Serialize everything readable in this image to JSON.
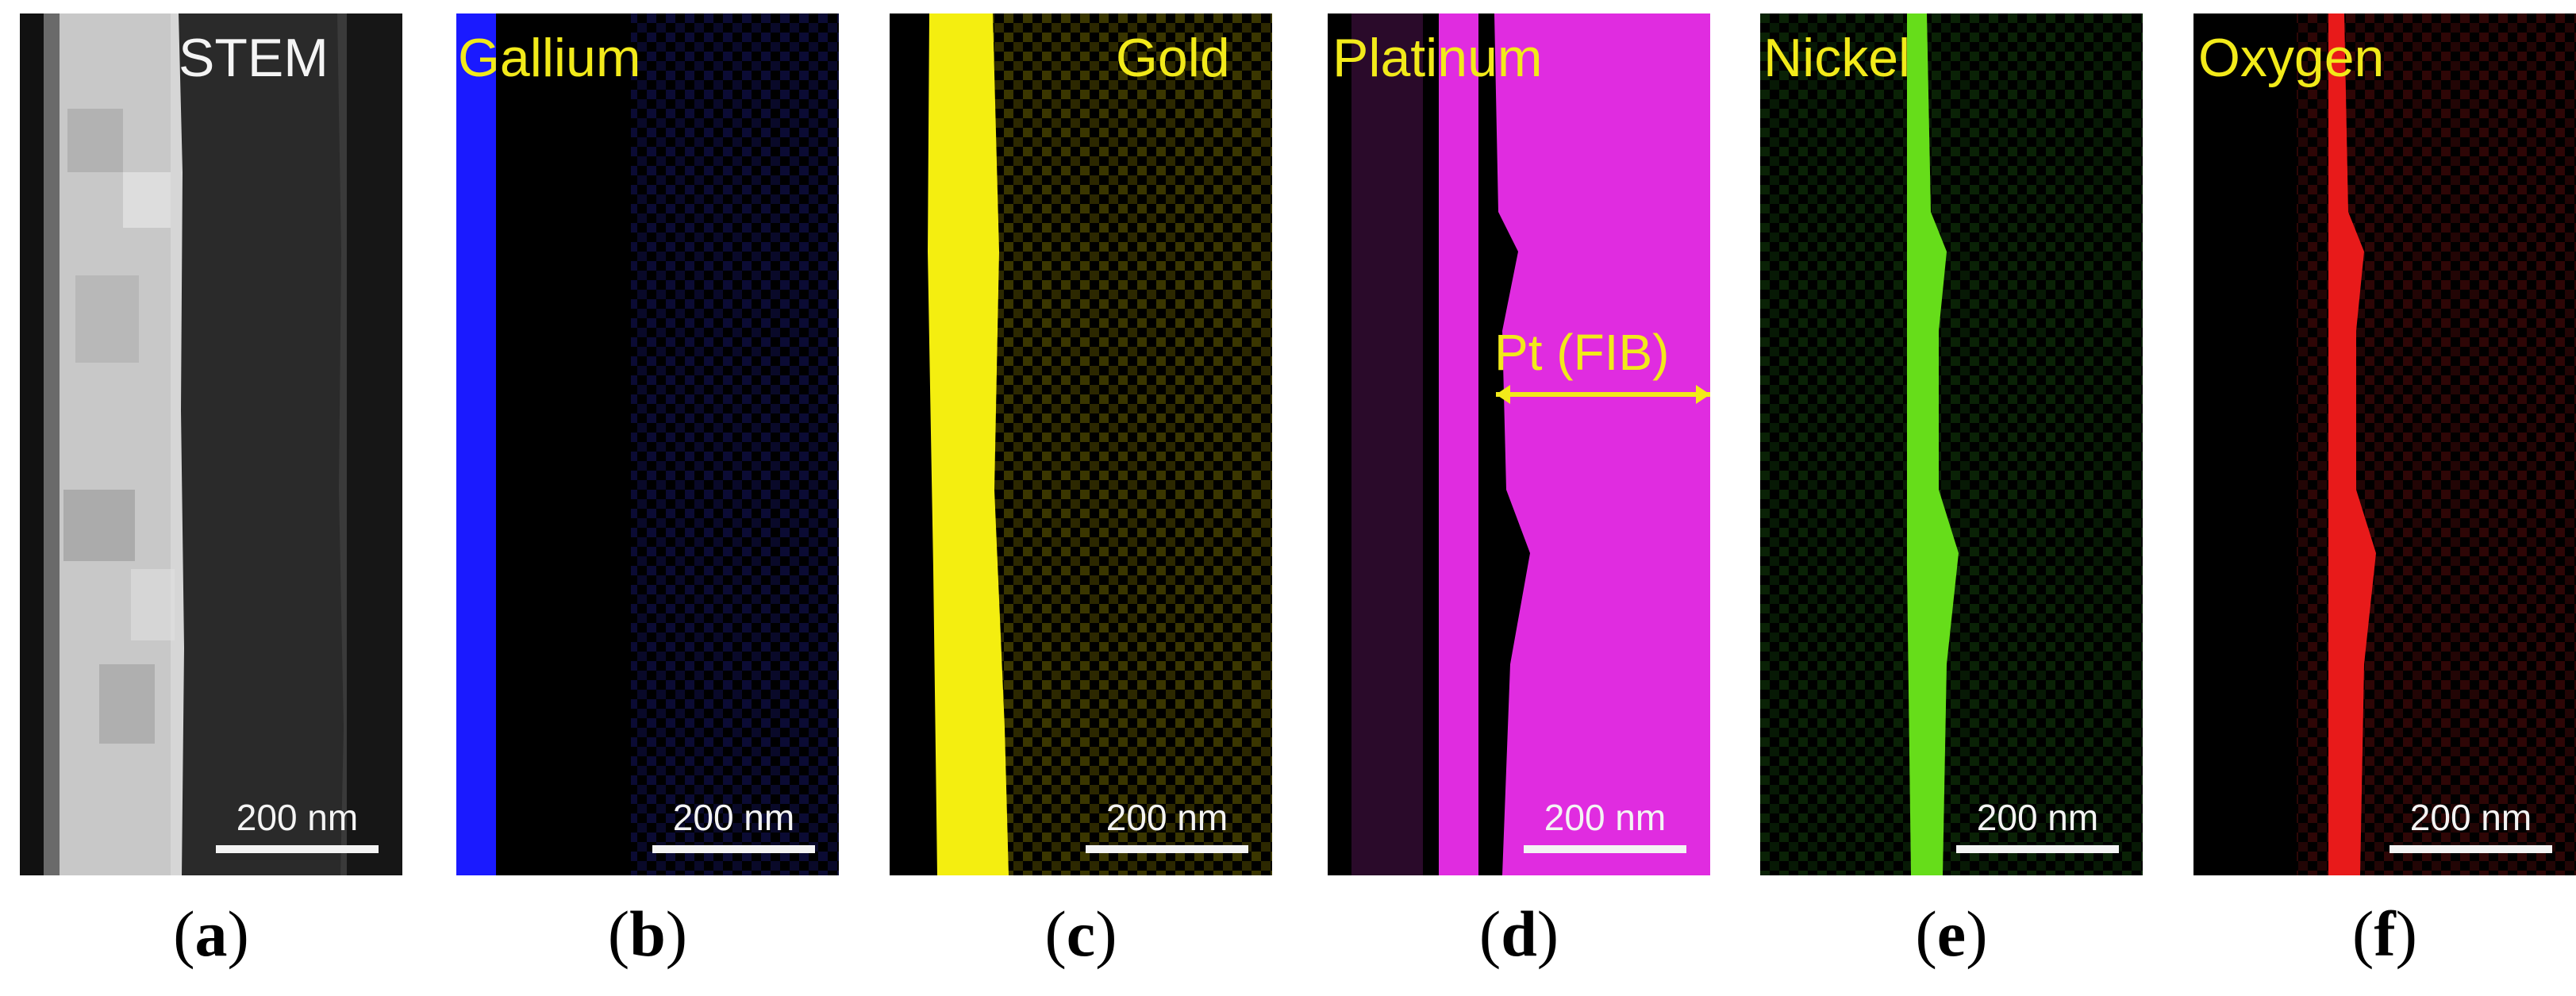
{
  "panels": [
    {
      "element": "STEM",
      "scale": "200 nm",
      "caption": "a"
    },
    {
      "element": "Gallium",
      "scale": "200 nm",
      "caption": "b"
    },
    {
      "element": "Gold",
      "scale": "200 nm",
      "caption": "c"
    },
    {
      "element": "Platinum",
      "scale": "200 nm",
      "caption": "d",
      "annotation": "Pt (FIB)"
    },
    {
      "element": "Nickel",
      "scale": "200 nm",
      "caption": "e"
    },
    {
      "element": "Oxygen",
      "scale": "200 nm",
      "caption": "f"
    }
  ],
  "colors": {
    "label_yellow": "#f2ea1a",
    "gallium": "#1a1aff",
    "gold": "#f4ee10",
    "platinum": "#e02ce0",
    "nickel": "#66dd1a",
    "oxygen": "#e81a1a"
  }
}
